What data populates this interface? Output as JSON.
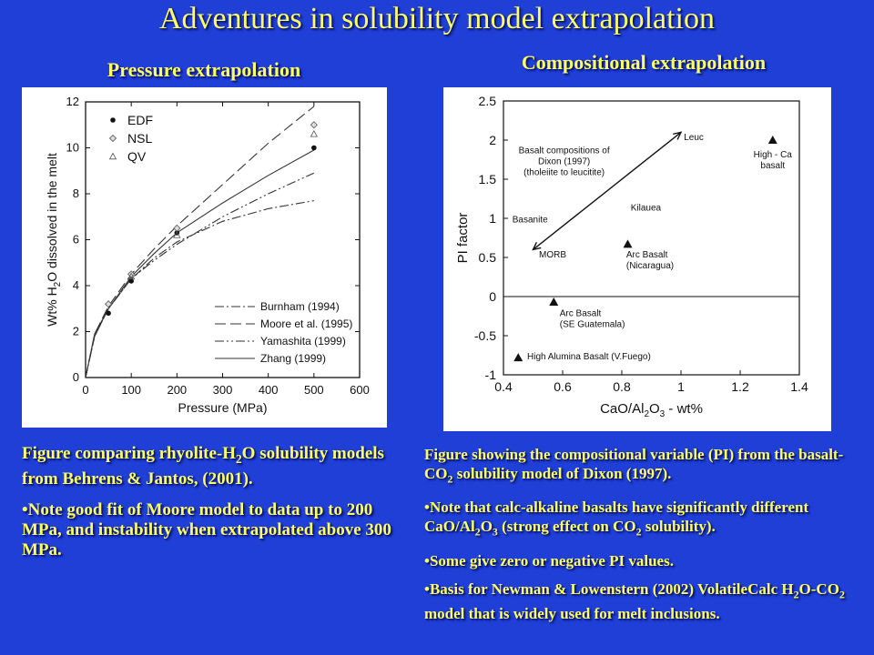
{
  "title": "Adventures in solubility model extrapolation",
  "left_subtitle": "Pressure extrapolation",
  "right_subtitle": "Compositional extrapolation",
  "left_caption": {
    "main_pre": "Figure comparing rhyolite-H",
    "main_sub": "2",
    "main_post": "O solubility models from Behrens & Jantos, (2001).",
    "bullet": "•Note good fit of Moore model to data up to 200 MPa, and instability when extrapolated above 300 MPa."
  },
  "right_caption": {
    "p1_pre": "Figure showing the compositional variable (PI) from the basalt-CO",
    "p1_sub": "2",
    "p1_post": " solubility model of Dixon (1997).",
    "b1_a": "•Note that calc-alkaline basalts have significantly different CaO/Al",
    "b1_s1": "2",
    "b1_b": "O",
    "b1_s2": "3",
    "b1_c": " (strong effect on CO",
    "b1_s3": "2",
    "b1_d": " solubility).",
    "b2": "•Some give zero or negative PI values.",
    "b3_a": "•Basis for Newman & Lowenstern (2002) VolatileCalc H",
    "b3_s1": "2",
    "b3_b": "O-CO",
    "b3_s2": "2",
    "b3_c": " model that is widely used for melt inclusions."
  },
  "chart_data": [
    {
      "type": "line",
      "xlabel": "Pressure (MPa)",
      "ylabel_pre": "Wt% H",
      "ylabel_sub": "2",
      "ylabel_post": "O dissolved in the melt",
      "xlim": [
        0,
        600
      ],
      "ylim": [
        0,
        12
      ],
      "xticks": [
        0,
        100,
        200,
        300,
        400,
        500,
        600
      ],
      "yticks": [
        0,
        2,
        4,
        6,
        8,
        10,
        12
      ],
      "legend_points": [
        {
          "name": "EDF",
          "marker": "filled-circle"
        },
        {
          "name": "NSL",
          "marker": "diamond"
        },
        {
          "name": "QV",
          "marker": "triangle"
        }
      ],
      "points": [
        {
          "series": "EDF",
          "x": 50,
          "y": 2.8
        },
        {
          "series": "EDF",
          "x": 100,
          "y": 4.2
        },
        {
          "series": "EDF",
          "x": 200,
          "y": 6.3
        },
        {
          "series": "EDF",
          "x": 500,
          "y": 10.0
        },
        {
          "series": "NSL",
          "x": 50,
          "y": 3.2
        },
        {
          "series": "NSL",
          "x": 100,
          "y": 4.5
        },
        {
          "series": "NSL",
          "x": 200,
          "y": 6.5
        },
        {
          "series": "NSL",
          "x": 500,
          "y": 11.0
        },
        {
          "series": "QV",
          "x": 100,
          "y": 4.4
        },
        {
          "series": "QV",
          "x": 200,
          "y": 6.2
        },
        {
          "series": "QV",
          "x": 500,
          "y": 10.6
        }
      ],
      "series": [
        {
          "name": "Burnham (1994)",
          "dash": "10,3,2,3",
          "x": [
            0,
            20,
            50,
            100,
            150,
            200,
            300,
            400,
            500
          ],
          "y": [
            0,
            1.8,
            3.0,
            4.3,
            5.2,
            5.9,
            6.8,
            7.35,
            7.7
          ]
        },
        {
          "name": "Moore et al. (1995)",
          "dash": "12,5",
          "x": [
            0,
            20,
            50,
            100,
            150,
            200,
            300,
            400,
            500
          ],
          "y": [
            0,
            1.9,
            3.1,
            4.5,
            5.6,
            6.6,
            8.4,
            10.2,
            11.8
          ]
        },
        {
          "name": "Yamashita (1999)",
          "dash": "10,3,2,3,2,3",
          "x": [
            0,
            20,
            50,
            100,
            150,
            200,
            300,
            400,
            500
          ],
          "y": [
            0,
            1.8,
            3.0,
            4.3,
            5.1,
            5.8,
            7.0,
            8.0,
            8.9
          ]
        },
        {
          "name": "Zhang (1999)",
          "dash": "",
          "x": [
            0,
            20,
            50,
            100,
            150,
            200,
            300,
            400,
            500
          ],
          "y": [
            0,
            1.9,
            3.0,
            4.4,
            5.4,
            6.3,
            7.6,
            8.8,
            9.9
          ]
        }
      ]
    },
    {
      "type": "scatter",
      "xlabel_pre": "CaO/Al",
      "xlabel_sub1": "2",
      "xlabel_mid": "O",
      "xlabel_sub2": "3",
      "xlabel_post": " - wt%",
      "ylabel": "PI factor",
      "xlim": [
        0.4,
        1.4
      ],
      "ylim": [
        -1,
        2.5
      ],
      "xticks": [
        0.4,
        0.6,
        0.8,
        1.0,
        1.2,
        1.4
      ],
      "xtick_labels": [
        "0.4",
        "0.6",
        "0.8",
        "1",
        "1.2",
        "1.4"
      ],
      "yticks": [
        -1,
        -0.5,
        0,
        0.5,
        1,
        1.5,
        2,
        2.5
      ],
      "ytick_labels": [
        "-1",
        "-0.5",
        "0",
        "0.5",
        "1",
        "1.5",
        "2",
        "2.5"
      ],
      "points": [
        {
          "x": 0.82,
          "y": 0.67,
          "label": [
            "Arc Basalt",
            "(Nicaragua)"
          ],
          "lx": 0.815,
          "ly": 0.5
        },
        {
          "x": 0.57,
          "y": -0.07,
          "label": [
            "Arc Basalt",
            "(SE Guatemala)"
          ],
          "lx": 0.59,
          "ly": -0.25
        },
        {
          "x": 0.45,
          "y": -0.78,
          "label": [
            "High Alumina Basalt (V.Fuego)"
          ],
          "lx": 0.48,
          "ly": -0.8
        },
        {
          "x": 1.31,
          "y": 2.0,
          "label": [
            "High - Ca",
            "basalt"
          ],
          "lx": 1.31,
          "ly": 1.78
        }
      ],
      "arrow": {
        "from": [
          0.5,
          0.6
        ],
        "to": [
          1.0,
          2.1
        ]
      },
      "annotations": [
        {
          "text": "Leuc",
          "x": 1.01,
          "y": 2.0,
          "anchor": "start"
        },
        {
          "text": "Kilauea",
          "x": 0.83,
          "y": 1.1,
          "anchor": "start"
        },
        {
          "text": "Basanite",
          "x": 0.43,
          "y": 0.95,
          "anchor": "start"
        },
        {
          "text": "MORB",
          "x": 0.52,
          "y": 0.5,
          "anchor": "start"
        },
        {
          "text": "Basalt compositions of",
          "x": 0.605,
          "y": 1.83,
          "anchor": "middle"
        },
        {
          "text": "Dixon (1997)",
          "x": 0.605,
          "y": 1.69,
          "anchor": "middle"
        },
        {
          "text": "(tholeiite to  leucitite)",
          "x": 0.605,
          "y": 1.55,
          "anchor": "middle"
        }
      ]
    }
  ]
}
